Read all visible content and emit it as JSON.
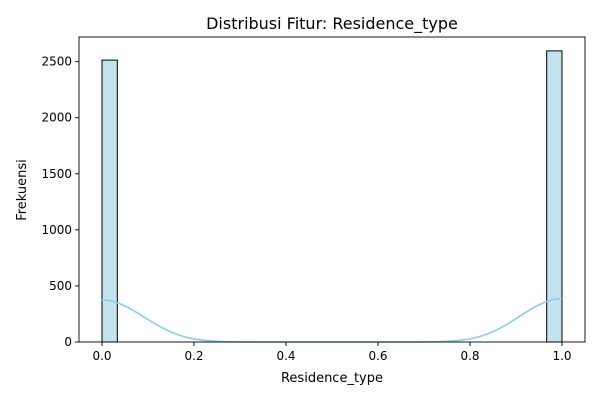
{
  "chart_data": {
    "type": "bar",
    "title": "Distribusi Fitur: Residence_type",
    "xlabel": "Residence_type",
    "ylabel": "Frekuensi",
    "xlim": [
      -0.05,
      1.05
    ],
    "ylim": [
      0,
      2720
    ],
    "xticks": [
      0.0,
      0.2,
      0.4,
      0.6,
      0.8,
      1.0
    ],
    "xtick_labels": [
      "0.0",
      "0.2",
      "0.4",
      "0.6",
      "0.8",
      "1.0"
    ],
    "yticks": [
      0,
      500,
      1000,
      1500,
      2000,
      2500
    ],
    "ytick_labels": [
      "0",
      "500",
      "1000",
      "1500",
      "2000",
      "2500"
    ],
    "bins": 30,
    "bars": [
      {
        "x0": 0.0,
        "x1": 0.0333,
        "value": 2514
      },
      {
        "x0": 0.9667,
        "x1": 1.0,
        "value": 2596
      }
    ],
    "kde": {
      "x": [
        0.0,
        0.02,
        0.04,
        0.06,
        0.08,
        0.1,
        0.12,
        0.14,
        0.16,
        0.18,
        0.2,
        0.22,
        0.24,
        0.26,
        0.28,
        0.3,
        0.35,
        0.4,
        0.5,
        0.6,
        0.65,
        0.7,
        0.72,
        0.74,
        0.76,
        0.78,
        0.8,
        0.82,
        0.84,
        0.86,
        0.88,
        0.9,
        0.92,
        0.94,
        0.96,
        0.98,
        1.0
      ],
      "y": [
        375,
        366,
        340,
        300,
        252,
        200,
        151,
        107,
        72,
        45,
        27,
        15,
        8,
        4,
        2,
        1,
        0,
        0,
        0,
        0,
        0,
        1,
        2,
        4,
        8,
        16,
        28,
        47,
        75,
        111,
        157,
        208,
        261,
        311,
        351,
        378,
        388
      ]
    },
    "colors": {
      "bar_fill": "#c3e4ef",
      "bar_edge": "#000000",
      "kde_line": "#87ceeb"
    },
    "grid": false,
    "legend": "none"
  }
}
